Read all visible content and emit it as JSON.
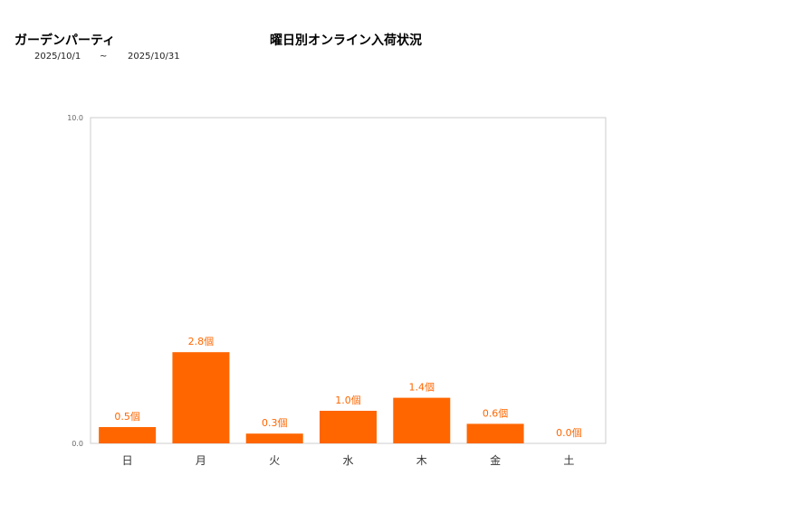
{
  "header": {
    "shop_name": "ガーデンパーティ",
    "title": "曜日別オンライン入荷状況",
    "date_from": "2025/10/1",
    "separator": "~",
    "date_to": "2025/10/31"
  },
  "colors": {
    "bar": "#ff6600",
    "axis": "#cccccc",
    "label": "#ff6600"
  },
  "chart_data": {
    "type": "bar",
    "categories": [
      "日",
      "月",
      "火",
      "水",
      "木",
      "金",
      "土"
    ],
    "values": [
      0.5,
      2.8,
      0.3,
      1.0,
      1.4,
      0.6,
      0.0
    ],
    "value_labels": [
      "0.5個",
      "2.8個",
      "0.3個",
      "1.0個",
      "1.4個",
      "0.6個",
      "0.0個"
    ],
    "title": "曜日別オンライン入荷状況",
    "ylim": [
      0,
      10
    ],
    "y_tick_labels": [
      "0.0",
      "10.0"
    ],
    "grid": false,
    "legend": "none"
  }
}
